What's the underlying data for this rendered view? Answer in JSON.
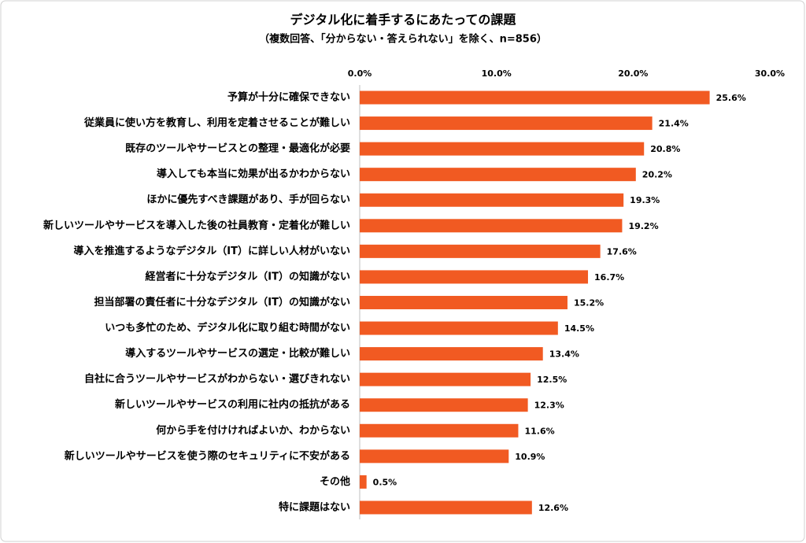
{
  "chart_data": {
    "type": "bar",
    "orientation": "horizontal",
    "title": "デジタル化に着手するにあたっての課題",
    "subtitle": "（複数回答、「分からない・答えられない」を除く、n=856）",
    "categories": [
      "予算が十分に確保できない",
      "従業員に使い方を教育し、利用を定着させることが難しい",
      "既存のツールやサービスとの整理・最適化が必要",
      "導入しても本当に効果が出るかわからない",
      "ほかに優先すべき課題があり、手が回らない",
      "新しいツールやサービスを導入した後の社員教育・定着化が難しい",
      "導入を推進するようなデジタル（IT）に詳しい人材がいない",
      "経営者に十分なデジタル（IT）の知識がない",
      "担当部署の責任者に十分なデジタル（IT）の知識がない",
      "いつも多忙のため、デジタル化に取り組む時間がない",
      "導入するツールやサービスの選定・比較が難しい",
      "自社に合うツールやサービスがわからない・選びきれない",
      "新しいツールやサービスの利用に社内の抵抗がある",
      "何から手を付けければよいか、わからない",
      "新しいツールやサービスを使う際のセキュリティに不安がある",
      "その他",
      "特に課題はない"
    ],
    "values": [
      25.6,
      21.4,
      20.8,
      20.2,
      19.3,
      19.2,
      17.6,
      16.7,
      15.2,
      14.5,
      13.4,
      12.5,
      12.3,
      11.6,
      10.9,
      0.5,
      12.6
    ],
    "value_labels": [
      "25.6%",
      "21.4%",
      "20.8%",
      "20.2%",
      "19.3%",
      "19.2%",
      "17.6%",
      "16.7%",
      "15.2%",
      "14.5%",
      "13.4%",
      "12.5%",
      "12.3%",
      "11.6%",
      "10.9%",
      "0.5%",
      "12.6%"
    ],
    "color": "#f15a22",
    "xlim": [
      0,
      30
    ],
    "xticks": [
      {
        "value": 0,
        "label": "0.0%"
      },
      {
        "value": 10,
        "label": "10.0%"
      },
      {
        "value": 20,
        "label": "20.0%"
      },
      {
        "value": 30,
        "label": "30.0%"
      }
    ],
    "grid": false
  }
}
